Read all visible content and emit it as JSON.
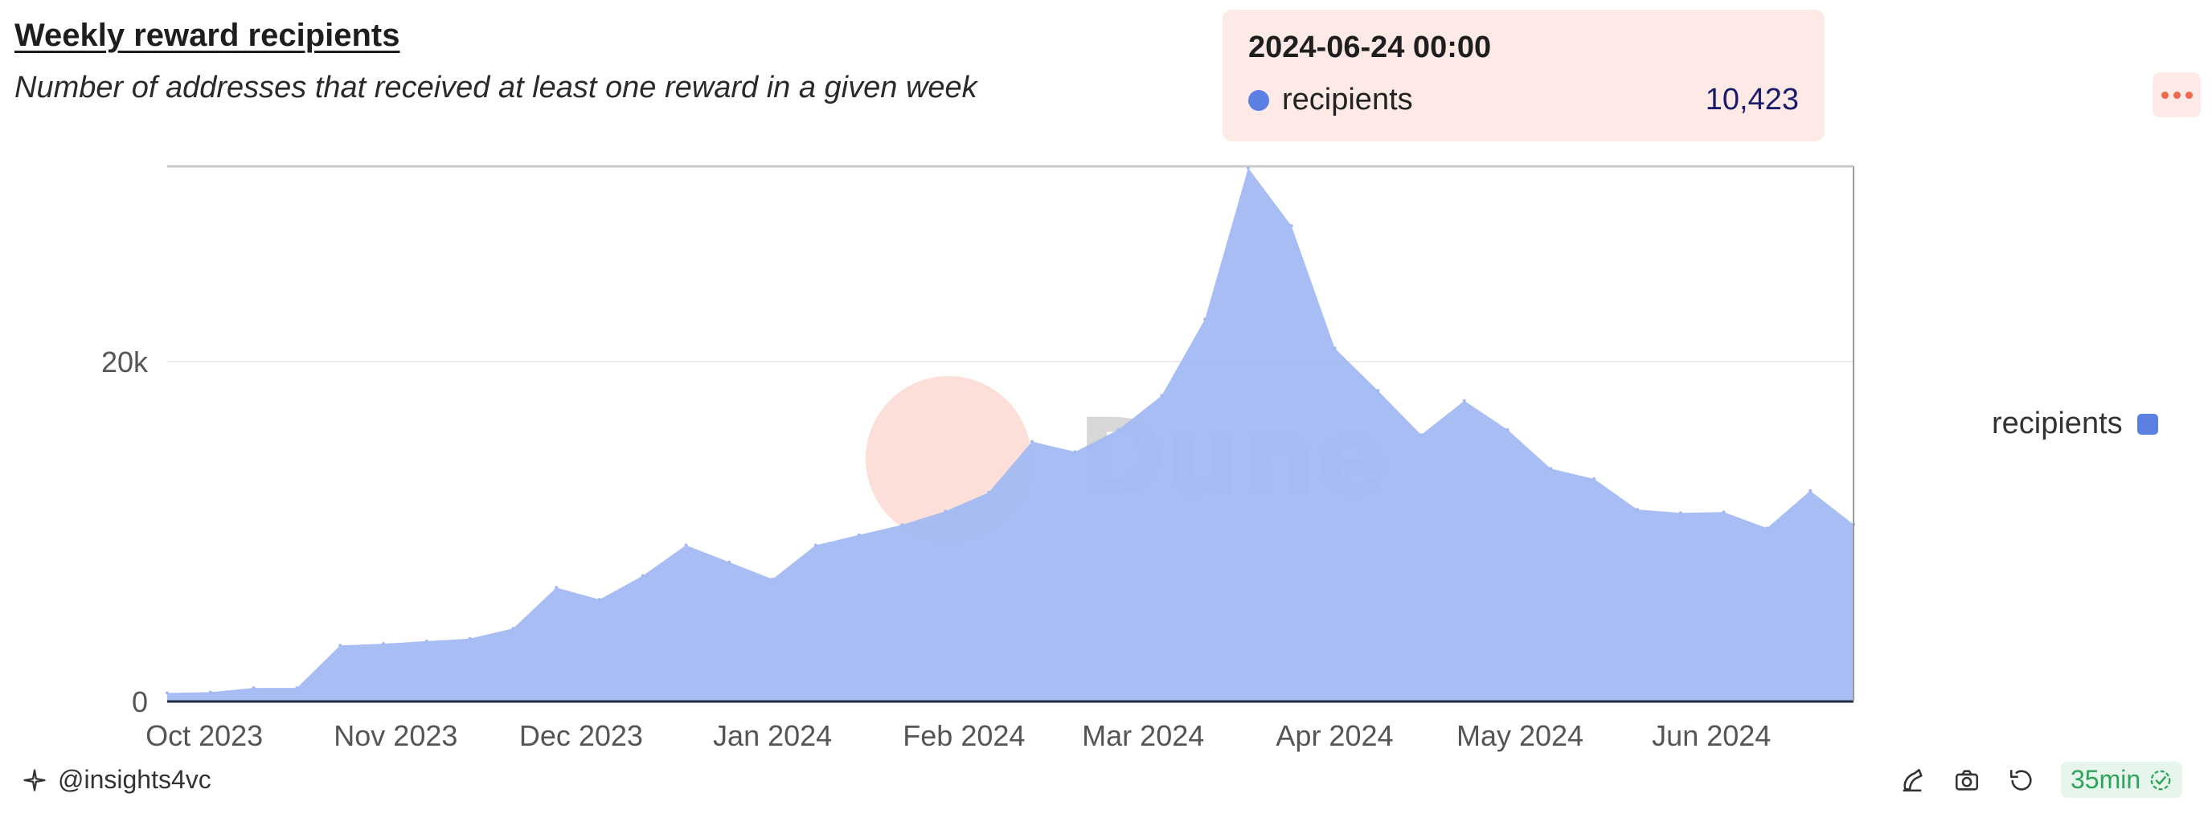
{
  "header": {
    "title": "Weekly reward recipients",
    "subtitle": "Number of addresses that received at least one reward in a given week"
  },
  "tooltip": {
    "date": "2024-06-24 00:00",
    "series_name": "recipients",
    "value": "10,423"
  },
  "watermark": {
    "text": "Dune"
  },
  "footer": {
    "user": "@insights4vc",
    "refresh_label": "35min",
    "icons": [
      "star-icon",
      "camera-icon",
      "refresh-icon",
      "check-circle-icon"
    ]
  },
  "colors": {
    "series": "#5b7fe3",
    "area_fill": "#a2b9f2",
    "tooltip_bg": "#fde9e6",
    "accent": "#ef6a4c",
    "fresh_green": "#2ea35b"
  },
  "chart_data": {
    "type": "area",
    "x_label": "",
    "y_label": "",
    "y_ticks": [
      0,
      20000
    ],
    "y_tick_labels": [
      "0",
      "20k"
    ],
    "ylim": [
      0,
      31500
    ],
    "x_tick_labels": [
      "Oct 2023",
      "Nov 2023",
      "Dec 2023",
      "Jan 2024",
      "Feb 2024",
      "Mar 2024",
      "Apr 2024",
      "May 2024",
      "Jun 2024"
    ],
    "legend": {
      "position": "right",
      "entries": [
        "recipients"
      ]
    },
    "grid": true,
    "series": [
      {
        "name": "recipients",
        "x": [
          "2023-09-25",
          "2023-10-02",
          "2023-10-09",
          "2023-10-16",
          "2023-10-23",
          "2023-10-30",
          "2023-11-06",
          "2023-11-13",
          "2023-11-20",
          "2023-11-27",
          "2023-12-04",
          "2023-12-11",
          "2023-12-18",
          "2023-12-25",
          "2024-01-01",
          "2024-01-08",
          "2024-01-15",
          "2024-01-22",
          "2024-01-29",
          "2024-02-05",
          "2024-02-12",
          "2024-02-19",
          "2024-02-26",
          "2024-03-04",
          "2024-03-11",
          "2024-03-18",
          "2024-03-25",
          "2024-04-01",
          "2024-04-08",
          "2024-04-15",
          "2024-04-22",
          "2024-04-29",
          "2024-05-06",
          "2024-05-13",
          "2024-05-20",
          "2024-05-27",
          "2024-06-03",
          "2024-06-10",
          "2024-06-17",
          "2024-06-24"
        ],
        "values": [
          500,
          550,
          800,
          800,
          3300,
          3400,
          3550,
          3700,
          4300,
          6700,
          6000,
          7400,
          9200,
          8200,
          7200,
          9200,
          9800,
          10400,
          11200,
          12300,
          15300,
          14700,
          16000,
          18000,
          22500,
          31400,
          28000,
          20800,
          18300,
          15700,
          17700,
          16000,
          13700,
          13100,
          11300,
          11100,
          11150,
          10200,
          12400,
          10423
        ]
      }
    ]
  }
}
